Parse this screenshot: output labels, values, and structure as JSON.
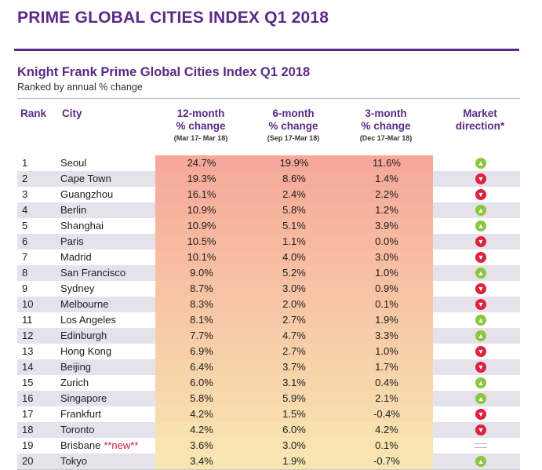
{
  "page": {
    "title": "PRIME GLOBAL CITIES INDEX Q1 2018"
  },
  "table": {
    "title": "Knight Frank Prime Global Cities Index Q1 2018",
    "subtitle": "Ranked by annual % change",
    "headers": {
      "rank": "Rank",
      "city": "City",
      "m12": "12-month",
      "m12_line2": "% change",
      "m12_sub": "(Mar 17- Mar 18)",
      "m6": "6-month",
      "m6_line2": "% change",
      "m6_sub": "(Sep 17-Mar 18)",
      "m3": "3-month",
      "m3_line2": "% change",
      "m3_sub": "(Dec 17-Mar 18)",
      "direction": "Market",
      "direction_line2": "direction*"
    },
    "rows": [
      {
        "rank": "1",
        "city": "Seoul",
        "tag": "",
        "m12": "24.7%",
        "m6": "19.9%",
        "m3": "11.6%",
        "direction": "up"
      },
      {
        "rank": "2",
        "city": "Cape Town",
        "tag": "",
        "m12": "19.3%",
        "m6": "8.6%",
        "m3": "1.4%",
        "direction": "down"
      },
      {
        "rank": "3",
        "city": "Guangzhou",
        "tag": "",
        "m12": "16.1%",
        "m6": "2.4%",
        "m3": "2.2%",
        "direction": "down"
      },
      {
        "rank": "4",
        "city": "Berlin",
        "tag": "",
        "m12": "10.9%",
        "m6": "5.8%",
        "m3": "1.2%",
        "direction": "up"
      },
      {
        "rank": "5",
        "city": "Shanghai",
        "tag": "",
        "m12": "10.9%",
        "m6": "5.1%",
        "m3": "3.9%",
        "direction": "up"
      },
      {
        "rank": "6",
        "city": "Paris",
        "tag": "",
        "m12": "10.5%",
        "m6": "1.1%",
        "m3": "0.0%",
        "direction": "down"
      },
      {
        "rank": "7",
        "city": "Madrid",
        "tag": "",
        "m12": "10.1%",
        "m6": "4.0%",
        "m3": "3.0%",
        "direction": "down"
      },
      {
        "rank": "8",
        "city": "San Francisco",
        "tag": "",
        "m12": "9.0%",
        "m6": "5.2%",
        "m3": "1.0%",
        "direction": "up"
      },
      {
        "rank": "9",
        "city": "Sydney",
        "tag": "",
        "m12": "8.7%",
        "m6": "3.0%",
        "m3": "0.9%",
        "direction": "down"
      },
      {
        "rank": "10",
        "city": "Melbourne",
        "tag": "",
        "m12": "8.3%",
        "m6": "2.0%",
        "m3": "0.1%",
        "direction": "down"
      },
      {
        "rank": "11",
        "city": "Los Angeles",
        "tag": "",
        "m12": "8.1%",
        "m6": "2.7%",
        "m3": "1.9%",
        "direction": "up"
      },
      {
        "rank": "12",
        "city": "Edinburgh",
        "tag": "",
        "m12": "7.7%",
        "m6": "4.7%",
        "m3": "3.3%",
        "direction": "up"
      },
      {
        "rank": "13",
        "city": "Hong Kong",
        "tag": "",
        "m12": "6.9%",
        "m6": "2.7%",
        "m3": "1.0%",
        "direction": "down"
      },
      {
        "rank": "14",
        "city": "Beijing",
        "tag": "",
        "m12": "6.4%",
        "m6": "3.7%",
        "m3": "1.7%",
        "direction": "down"
      },
      {
        "rank": "15",
        "city": "Zurich",
        "tag": "",
        "m12": "6.0%",
        "m6": "3.1%",
        "m3": "0.4%",
        "direction": "up"
      },
      {
        "rank": "16",
        "city": "Singapore",
        "tag": "",
        "m12": "5.8%",
        "m6": "5.9%",
        "m3": "2.1%",
        "direction": "up"
      },
      {
        "rank": "17",
        "city": "Frankfurt",
        "tag": "",
        "m12": "4.2%",
        "m6": "1.5%",
        "m3": "-0.4%",
        "direction": "down"
      },
      {
        "rank": "18",
        "city": "Toronto",
        "tag": "",
        "m12": "4.2%",
        "m6": "6.0%",
        "m3": "4.2%",
        "direction": "down"
      },
      {
        "rank": "19",
        "city": "Brisbane",
        "tag": "**new**",
        "m12": "3.6%",
        "m6": "3.0%",
        "m3": "0.1%",
        "direction": "flat"
      },
      {
        "rank": "20",
        "city": "Tokyo",
        "tag": "",
        "m12": "3.4%",
        "m6": "1.9%",
        "m3": "-0.7%",
        "direction": "up"
      }
    ]
  },
  "colors": {
    "brand": "#5b2a86",
    "up": "#8cc63f",
    "down": "#e0203f",
    "new_tag": "#d4193b",
    "heat_high": "#f6a99a",
    "heat_low": "#f8e6b2"
  },
  "icons": {
    "up": "up-arrow-icon",
    "down": "down-arrow-icon",
    "flat": "flat-line-icon"
  }
}
